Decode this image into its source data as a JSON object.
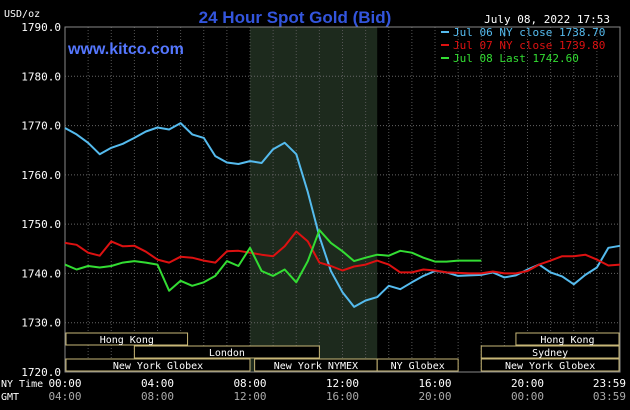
{
  "chart_data": {
    "type": "line",
    "title": "24 Hour Spot Gold (Bid)",
    "timestamp": "July 08, 2022 17:53",
    "watermark": "www.kitco.com",
    "ylabel": "USD/oz",
    "ylim": [
      1720,
      1790
    ],
    "yticks": [
      "1790.0",
      "1780.0",
      "1770.0",
      "1760.0",
      "1750.0",
      "1740.0",
      "1730.0",
      "1720.0"
    ],
    "xlim": [
      0,
      24
    ],
    "xtick_rows": [
      {
        "label": "NY Time",
        "ticks": [
          "00:00",
          "04:00",
          "08:00",
          "12:00",
          "16:00",
          "20:00",
          "23:59"
        ]
      },
      {
        "label": "GMT",
        "ticks": [
          "04:00",
          "08:00",
          "12:00",
          "16:00",
          "20:00",
          "00:00",
          "03:59"
        ]
      }
    ],
    "grid": true,
    "legend_position": "top-right",
    "highlight_band_hours": [
      8,
      13.5
    ],
    "sessions": [
      {
        "label": "Hong Kong",
        "row": 0,
        "start": 0,
        "end": 5.3
      },
      {
        "label": "London",
        "row": 1,
        "start": 3,
        "end": 11
      },
      {
        "label": "New York Globex",
        "row": 2,
        "start": 0,
        "end": 8
      },
      {
        "label": "New York NYMEX",
        "row": 2,
        "start": 8.2,
        "end": 13.5
      },
      {
        "label": "NY Globex",
        "row": 2,
        "start": 13.5,
        "end": 17
      },
      {
        "label": "Hong Kong",
        "row": 0,
        "start": 19.5,
        "end": 24
      },
      {
        "label": "Sydney",
        "row": 1,
        "start": 18,
        "end": 24
      },
      {
        "label": "New York Globex",
        "row": 2,
        "start": 18,
        "end": 24
      }
    ],
    "series": [
      {
        "name": "Jul 06 NY close 1738.70",
        "color": "#55bbee",
        "x": [
          0,
          0.5,
          1,
          1.5,
          2,
          2.5,
          3,
          3.5,
          4,
          4.5,
          5,
          5.5,
          6,
          6.5,
          7,
          7.5,
          8,
          8.5,
          9,
          9.5,
          10,
          10.5,
          11,
          11.5,
          12,
          12.5,
          13,
          13.5,
          14,
          14.5,
          15,
          15.5,
          16,
          16.5,
          17,
          17.5,
          18,
          18.5,
          19,
          19.5,
          20,
          20.5,
          21,
          21.5,
          22,
          22.5,
          23,
          23.5,
          24
        ],
        "values": [
          1769.5,
          1768.2,
          1766.5,
          1764.2,
          1765.5,
          1766.3,
          1767.5,
          1768.8,
          1769.6,
          1769.2,
          1770.5,
          1768.2,
          1767.5,
          1763.8,
          1762.5,
          1762.2,
          1762.8,
          1762.4,
          1765.2,
          1766.5,
          1764.2,
          1756.5,
          1747.5,
          1740.5,
          1736.2,
          1733.2,
          1734.5,
          1735.2,
          1737.5,
          1736.8,
          1738.2,
          1739.5,
          1740.5,
          1740.2,
          1739.5,
          1739.6,
          1739.7,
          1740.2,
          1739.2,
          1739.6,
          1740.8,
          1741.8,
          1740.2,
          1739.4,
          1737.8,
          1739.7,
          1741.2,
          1745.2,
          1745.6
        ]
      },
      {
        "name": "Jul 07 NY close 1739.80",
        "color": "#dd1111",
        "x": [
          0,
          0.5,
          1,
          1.5,
          2,
          2.5,
          3,
          3.5,
          4,
          4.5,
          5,
          5.5,
          6,
          6.5,
          7,
          7.5,
          8,
          8.5,
          9,
          9.5,
          10,
          10.5,
          11,
          11.5,
          12,
          12.5,
          13,
          13.5,
          14,
          14.5,
          15,
          15.5,
          16,
          16.5,
          17,
          17.5,
          18,
          18.5,
          19,
          19.5,
          20,
          20.5,
          21,
          21.5,
          22,
          22.5,
          23,
          23.5,
          24
        ],
        "values": [
          1746.2,
          1745.8,
          1744.2,
          1743.6,
          1746.5,
          1745.5,
          1745.6,
          1744.4,
          1742.8,
          1742.2,
          1743.4,
          1743.2,
          1742.6,
          1742.2,
          1744.5,
          1744.6,
          1744.2,
          1743.8,
          1743.5,
          1745.5,
          1748.5,
          1746.5,
          1742.2,
          1741.5,
          1740.6,
          1741.4,
          1741.8,
          1742.6,
          1741.8,
          1740.2,
          1740.2,
          1740.8,
          1740.6,
          1740.2,
          1740.1,
          1740.0,
          1740.0,
          1740.4,
          1740.0,
          1740.0,
          1740.5,
          1741.8,
          1742.6,
          1743.5,
          1743.5,
          1743.8,
          1742.8,
          1741.6,
          1741.8
        ]
      },
      {
        "name": "Jul 08 Last 1742.60",
        "color": "#33dd33",
        "x": [
          0,
          0.5,
          1,
          1.5,
          2,
          2.5,
          3,
          3.5,
          4,
          4.5,
          5,
          5.5,
          6,
          6.5,
          7,
          7.5,
          8,
          8.5,
          9,
          9.5,
          10,
          10.5,
          11,
          11.5,
          12,
          12.5,
          13,
          13.5,
          14,
          14.5,
          15,
          15.5,
          16,
          16.5,
          17,
          17.5,
          18
        ],
        "values": [
          1741.8,
          1740.8,
          1741.5,
          1741.2,
          1741.5,
          1742.2,
          1742.5,
          1742.2,
          1741.8,
          1736.5,
          1738.5,
          1737.5,
          1738.2,
          1739.5,
          1742.5,
          1741.5,
          1745.2,
          1740.5,
          1739.5,
          1740.8,
          1738.2,
          1742.5,
          1748.8,
          1746.2,
          1744.5,
          1742.5,
          1743.2,
          1743.8,
          1743.6,
          1744.6,
          1744.2,
          1743.2,
          1742.4,
          1742.4,
          1742.6,
          1742.6,
          1742.6
        ]
      }
    ]
  }
}
